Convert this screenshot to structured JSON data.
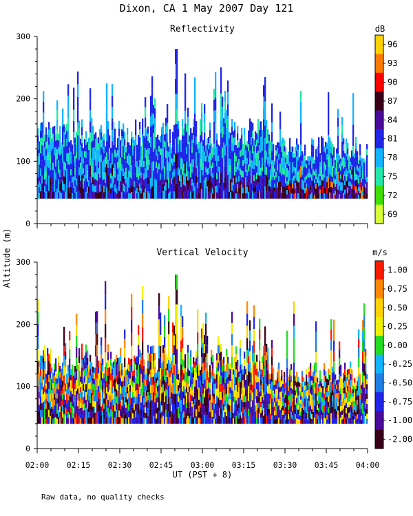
{
  "title": "Dixon, CA   1 May 2007   Day 121",
  "footer_note": "Raw data, no quality checks",
  "chart_data": [
    {
      "type": "heatmap",
      "title": "Reflectivity",
      "ylabel": "Altitude (m)",
      "ylim": [
        0,
        300
      ],
      "yticks": [
        0,
        100,
        200,
        300
      ],
      "xlim_minutes": [
        0,
        120
      ],
      "colorbar": {
        "unit": "dB",
        "labels": [
          "96",
          "93",
          "90",
          "87",
          "84",
          "81",
          "78",
          "75",
          "72",
          "69"
        ],
        "colors": [
          "#ffd200",
          "#ff7a00",
          "#ff0000",
          "#3a0018",
          "#4b0a9c",
          "#1f26e8",
          "#12b4ff",
          "#22e8a8",
          "#3ee000",
          "#d6ff3a"
        ]
      },
      "data_range_m": [
        40,
        280
      ]
    },
    {
      "type": "heatmap",
      "title": "Vertical Velocity",
      "ylim": [
        0,
        300
      ],
      "yticks": [
        0,
        100,
        200,
        300
      ],
      "xlim_minutes": [
        0,
        120
      ],
      "colorbar": {
        "unit": "m/s",
        "labels": [
          "1.00",
          "0.75",
          "0.50",
          "0.25",
          "0.00",
          "-0.25",
          "-0.50",
          "-0.75",
          "-1.00",
          "-2.00"
        ],
        "colors": [
          "#ff1a00",
          "#ff8800",
          "#ffd200",
          "#eef000",
          "#22dd22",
          "#12b4ff",
          "#1f7fe8",
          "#1f26e8",
          "#4b0a9c",
          "#3a0018"
        ]
      },
      "data_range_m": [
        40,
        280
      ]
    }
  ],
  "xaxis": {
    "label": "UT  (PST + 8)",
    "ticks": [
      "02:00",
      "02:15",
      "02:30",
      "02:45",
      "03:00",
      "03:15",
      "03:30",
      "03:45",
      "04:00"
    ]
  }
}
